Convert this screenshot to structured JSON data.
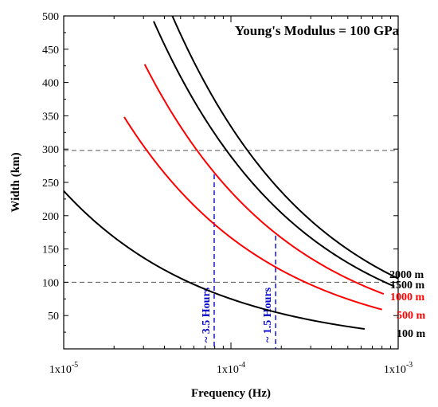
{
  "chart_data": {
    "type": "line",
    "title": "Young's Modulus = 100 GPa",
    "xlabel": "Frequency (Hz)",
    "ylabel": "Width (km)",
    "x_scale": "log",
    "xlim": [
      1e-05,
      0.001
    ],
    "ylim": [
      0,
      500
    ],
    "x_ticks": [
      {
        "value": 1e-05,
        "label": "1x10-5",
        "base": "1x10",
        "exp": "-5"
      },
      {
        "value": 0.0001,
        "label": "1x10-4",
        "base": "1x10",
        "exp": "-4"
      },
      {
        "value": 0.001,
        "label": "1x10-3",
        "base": "1x10",
        "exp": "-3"
      }
    ],
    "y_ticks": [
      50,
      100,
      150,
      200,
      250,
      300,
      350,
      400,
      450,
      500
    ],
    "colors": {
      "black": "#000000",
      "red": "#ff0000",
      "blue": "#0000cc",
      "grey": "#555555"
    },
    "series": [
      {
        "name": "100 m",
        "color": "#000000",
        "fmin": 1e-05,
        "fmax": 0.00063,
        "value_at_0001": 75
      },
      {
        "name": "500 m",
        "color": "#ff0000",
        "fmin": 2.3e-05,
        "fmax": 0.0008,
        "value_at_0001": 167
      },
      {
        "name": "1000 m",
        "color": "#ff0000",
        "fmin": 3.05e-05,
        "fmax": 0.00082,
        "value_at_0001": 236
      },
      {
        "name": "1500 m",
        "color": "#000000",
        "fmin": 3.45e-05,
        "fmax": 0.00095,
        "value_at_0001": 289
      },
      {
        "name": "2000 m",
        "color": "#000000",
        "fmin": 4.05e-05,
        "fmax": 0.001,
        "value_at_0001": 334
      }
    ],
    "reference_lines": [
      {
        "orientation": "horizontal",
        "y": 298,
        "style": "dashed",
        "color": "#555555"
      },
      {
        "orientation": "horizontal",
        "y": 100,
        "style": "dashed",
        "color": "#555555"
      },
      {
        "orientation": "vertical",
        "x": 7.94e-05,
        "y_top": 262,
        "style": "dashed",
        "color": "#0000cc",
        "label": "~ 3.5 Hours"
      },
      {
        "orientation": "vertical",
        "x": 0.000185,
        "y_top": 170,
        "style": "dashed",
        "color": "#0000cc",
        "label": "~ 1.5 Hours"
      }
    ]
  }
}
